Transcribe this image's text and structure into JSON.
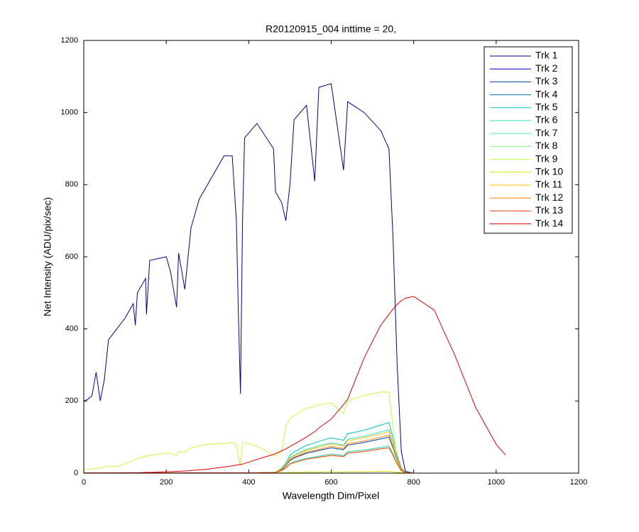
{
  "chart_data": {
    "type": "line",
    "title": "R20120915_004 inttime = 20,",
    "x_label": "Wavelength Dim/Pixel",
    "y_label": "Net Intensity (ADU/pix/sec)",
    "xlim": [
      0,
      1200
    ],
    "ylim": [
      0,
      1200
    ],
    "xticks": [
      0,
      200,
      400,
      600,
      800,
      1000,
      1200
    ],
    "yticks": [
      0,
      200,
      400,
      600,
      800,
      1000,
      1200
    ],
    "legend": "northeast",
    "x": [
      0,
      10,
      20,
      30,
      40,
      50,
      60,
      80,
      100,
      120,
      125,
      130,
      150,
      152,
      160,
      200,
      210,
      225,
      230,
      245,
      260,
      280,
      300,
      340,
      360,
      370,
      375,
      380,
      385,
      390,
      420,
      460,
      465,
      480,
      490,
      500,
      510,
      540,
      560,
      570,
      600,
      630,
      640,
      680,
      720,
      740,
      750,
      760,
      770,
      780,
      800,
      850,
      900,
      950,
      1000,
      1023
    ],
    "series": [
      {
        "name": "Trk 1",
        "color": "#00008f",
        "values": [
          200,
          205,
          215,
          280,
          200,
          260,
          370,
          400,
          430,
          470,
          410,
          500,
          540,
          440,
          590,
          600,
          560,
          460,
          610,
          510,
          680,
          760,
          800,
          880,
          880,
          700,
          440,
          220,
          700,
          930,
          970,
          900,
          780,
          750,
          700,
          800,
          980,
          1020,
          810,
          1070,
          1080,
          840,
          1030,
          1000,
          950,
          900,
          650,
          300,
          60,
          5,
          0,
          0,
          0,
          0,
          0,
          0
        ]
      },
      {
        "name": "Trk 2",
        "color": "#0000c8",
        "values": [
          1,
          1,
          1,
          1,
          1,
          1,
          1,
          1,
          1,
          1,
          1,
          1,
          1,
          1,
          1,
          1,
          1,
          1,
          1,
          1,
          1,
          1,
          1,
          1,
          1,
          1,
          1,
          1,
          1,
          1,
          1,
          2,
          2,
          8,
          15,
          26,
          32,
          41,
          45,
          47,
          53,
          49,
          59,
          64,
          71,
          75,
          53,
          26,
          8,
          2,
          0,
          0,
          0,
          0,
          0,
          0
        ]
      },
      {
        "name": "Trk 3",
        "color": "#0040b0",
        "values": [
          1,
          1,
          1,
          1,
          1,
          1,
          1,
          1,
          1,
          1,
          1,
          1,
          1,
          1,
          1,
          1,
          1,
          1,
          1,
          1,
          1,
          1,
          1,
          1,
          1,
          1,
          1,
          1,
          1,
          1,
          1,
          2,
          2,
          10,
          20,
          35,
          42,
          55,
          60,
          63,
          70,
          65,
          78,
          85,
          95,
          100,
          70,
          35,
          10,
          2,
          0,
          0,
          0,
          0,
          0,
          0
        ]
      },
      {
        "name": "Trk 4",
        "color": "#0078a8",
        "values": [
          1,
          1,
          1,
          1,
          1,
          1,
          1,
          1,
          1,
          1,
          1,
          1,
          1,
          1,
          1,
          1,
          1,
          1,
          1,
          1,
          1,
          1,
          1,
          1,
          1,
          1,
          1,
          1,
          1,
          1,
          1,
          2,
          2,
          8,
          15,
          26,
          32,
          41,
          45,
          47,
          53,
          49,
          59,
          64,
          71,
          75,
          53,
          26,
          8,
          2,
          0,
          0,
          0,
          0,
          0,
          0
        ]
      },
      {
        "name": "Trk 5",
        "color": "#00bfbf",
        "values": [
          1,
          1,
          1,
          1,
          1,
          1,
          1,
          1,
          1,
          1,
          1,
          1,
          1,
          1,
          1,
          1,
          1,
          1,
          1,
          1,
          1,
          1,
          1,
          1,
          1,
          1,
          1,
          1,
          1,
          1,
          1,
          2,
          2,
          14,
          28,
          49,
          59,
          77,
          84,
          88,
          98,
          91,
          109,
          119,
          133,
          140,
          98,
          49,
          14,
          3,
          0,
          0,
          0,
          0,
          0,
          0
        ]
      },
      {
        "name": "Trk 6",
        "color": "#30dfcf",
        "values": [
          1,
          1,
          1,
          1,
          1,
          1,
          1,
          1,
          1,
          1,
          1,
          1,
          1,
          1,
          1,
          1,
          1,
          1,
          1,
          1,
          1,
          1,
          1,
          1,
          1,
          1,
          1,
          1,
          1,
          1,
          1,
          2,
          2,
          12,
          24,
          42,
          50,
          66,
          72,
          76,
          84,
          78,
          94,
          102,
          114,
          120,
          84,
          42,
          12,
          2,
          0,
          0,
          0,
          0,
          0,
          0
        ]
      },
      {
        "name": "Trk 7",
        "color": "#50efc0",
        "values": [
          1,
          1,
          1,
          1,
          1,
          1,
          1,
          1,
          1,
          1,
          1,
          1,
          1,
          1,
          1,
          1,
          1,
          1,
          1,
          1,
          1,
          1,
          1,
          1,
          1,
          1,
          1,
          1,
          1,
          1,
          1,
          2,
          2,
          8,
          15,
          26,
          32,
          41,
          45,
          47,
          53,
          49,
          59,
          64,
          71,
          75,
          53,
          26,
          8,
          2,
          0,
          0,
          0,
          0,
          0,
          0
        ]
      },
      {
        "name": "Trk 8",
        "color": "#80ff80",
        "values": [
          1,
          1,
          1,
          1,
          1,
          1,
          1,
          1,
          1,
          1,
          1,
          1,
          1,
          1,
          1,
          1,
          1,
          1,
          1,
          1,
          1,
          1,
          1,
          1,
          1,
          1,
          1,
          1,
          1,
          1,
          1,
          2,
          2,
          7,
          14,
          25,
          29,
          39,
          42,
          44,
          49,
          46,
          55,
          60,
          67,
          70,
          49,
          25,
          7,
          1,
          0,
          0,
          0,
          0,
          0,
          0
        ]
      },
      {
        "name": "Trk 9",
        "color": "#c0ff40",
        "values": [
          10,
          10,
          12,
          13,
          15,
          17,
          20,
          18,
          25,
          35,
          38,
          40,
          48,
          45,
          50,
          55,
          55,
          50,
          60,
          58,
          70,
          75,
          80,
          82,
          85,
          80,
          45,
          20,
          85,
          85,
          75,
          50,
          48,
          60,
          130,
          150,
          160,
          180,
          185,
          190,
          195,
          165,
          200,
          215,
          225,
          225,
          130,
          30,
          5,
          0,
          0,
          0,
          0,
          0,
          0,
          0
        ]
      },
      {
        "name": "Trk 10",
        "color": "#dfdf00",
        "values": [
          1,
          1,
          1,
          1,
          1,
          1,
          1,
          1,
          1,
          1,
          1,
          1,
          1,
          1,
          1,
          1,
          1,
          1,
          1,
          1,
          1,
          1,
          1,
          1,
          1,
          1,
          1,
          1,
          1,
          1,
          1,
          2,
          2,
          1,
          1,
          2,
          2,
          3,
          3,
          3,
          4,
          3,
          4,
          4,
          5,
          5,
          4,
          2,
          1,
          0,
          0,
          0,
          0,
          0,
          0,
          0
        ]
      },
      {
        "name": "Trk 11",
        "color": "#ffbf00",
        "values": [
          1,
          1,
          1,
          1,
          1,
          1,
          1,
          1,
          1,
          1,
          1,
          1,
          1,
          1,
          1,
          1,
          1,
          1,
          1,
          1,
          1,
          1,
          1,
          1,
          1,
          1,
          1,
          1,
          1,
          1,
          1,
          2,
          2,
          12,
          23,
          40,
          48,
          63,
          69,
          72,
          81,
          75,
          90,
          98,
          109,
          115,
          81,
          40,
          12,
          2,
          0,
          0,
          0,
          0,
          0,
          0
        ]
      },
      {
        "name": "Trk 12",
        "color": "#ff8000",
        "values": [
          1,
          1,
          1,
          1,
          1,
          1,
          1,
          1,
          1,
          1,
          1,
          1,
          1,
          1,
          1,
          1,
          1,
          1,
          1,
          1,
          1,
          1,
          1,
          1,
          1,
          1,
          1,
          1,
          1,
          1,
          1,
          2,
          2,
          11,
          21,
          37,
          44,
          58,
          63,
          66,
          74,
          68,
          82,
          89,
          100,
          105,
          74,
          37,
          11,
          2,
          0,
          0,
          0,
          0,
          0,
          0
        ]
      },
      {
        "name": "Trk 13",
        "color": "#ff4000",
        "values": [
          1,
          1,
          1,
          1,
          1,
          1,
          1,
          1,
          1,
          1,
          1,
          1,
          1,
          1,
          1,
          1,
          1,
          1,
          1,
          1,
          1,
          1,
          1,
          1,
          1,
          1,
          1,
          1,
          1,
          1,
          1,
          2,
          2,
          7,
          14,
          25,
          29,
          39,
          42,
          44,
          49,
          46,
          55,
          60,
          67,
          70,
          49,
          25,
          7,
          1,
          0,
          0,
          0,
          0,
          0,
          0
        ]
      },
      {
        "name": "Trk 14",
        "color": "#df0000",
        "values": [
          0,
          0,
          0,
          0,
          0,
          0,
          0,
          0,
          1,
          1,
          1,
          1,
          2,
          2,
          2,
          4,
          4,
          5,
          5,
          6,
          7,
          9,
          11,
          17,
          20,
          22,
          23,
          24,
          25,
          27,
          38,
          52,
          54,
          62,
          67,
          74,
          80,
          100,
          115,
          125,
          150,
          190,
          205,
          320,
          410,
          440,
          455,
          468,
          478,
          485,
          490,
          452,
          326,
          183,
          80,
          50
        ]
      }
    ]
  }
}
